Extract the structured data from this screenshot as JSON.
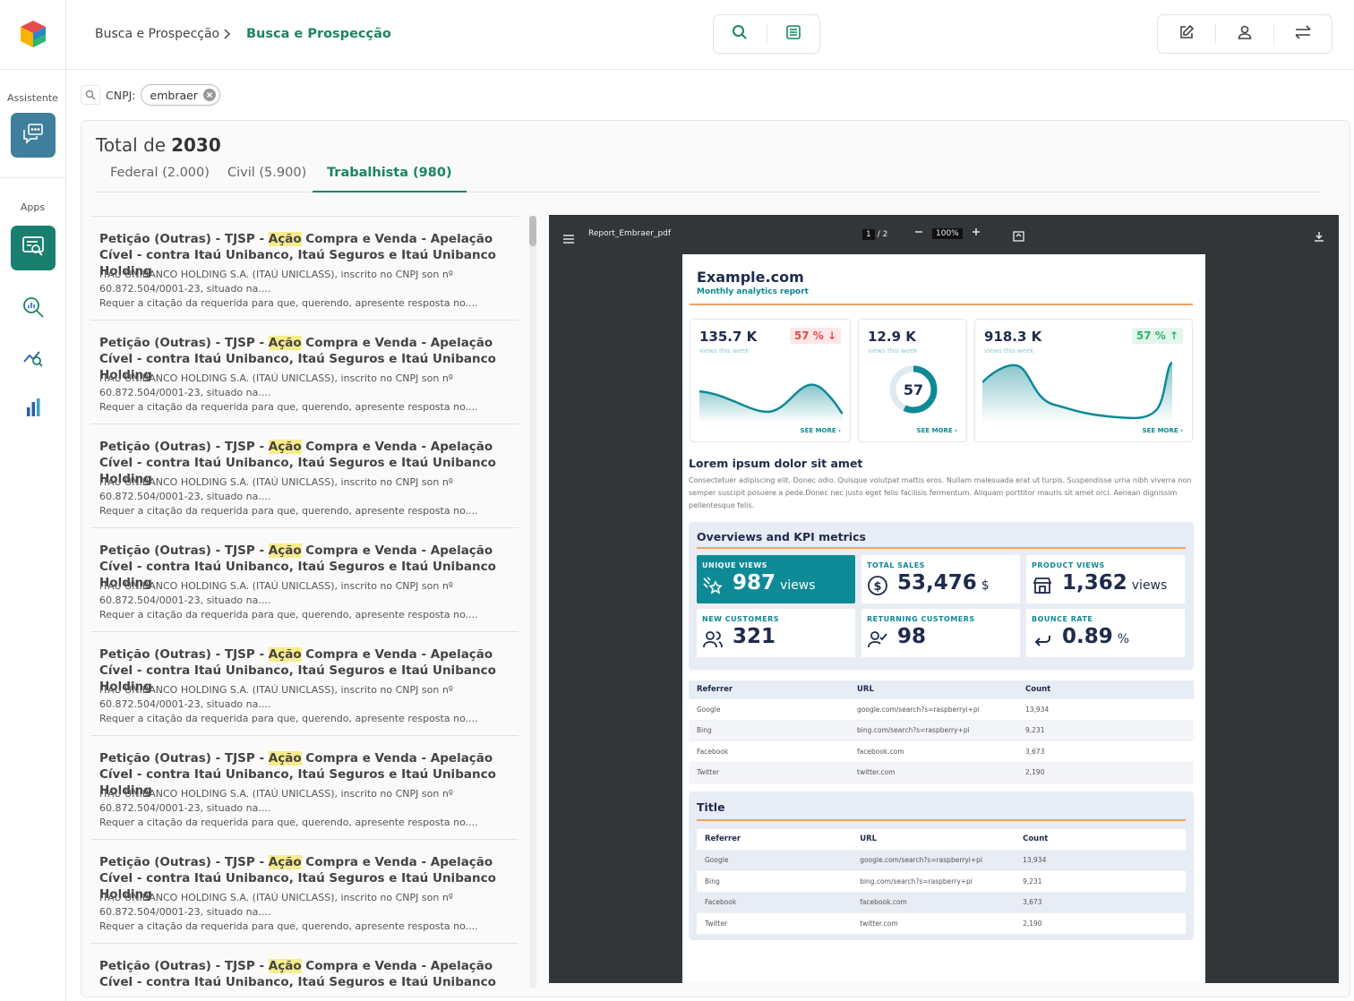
{
  "sidebar": {
    "assistant_label": "Assistente",
    "apps_label": "Apps",
    "items": [
      {
        "icon": "assistant-chat-icon"
      },
      {
        "icon": "document-search-icon"
      },
      {
        "icon": "chart-search-icon"
      },
      {
        "icon": "trend-search-icon"
      },
      {
        "icon": "bar-chart-icon"
      }
    ]
  },
  "header": {
    "breadcrumb_parent": "Busca e Prospecção",
    "breadcrumb_current": "Busca e Prospecção"
  },
  "filter": {
    "label": "CNPJ:",
    "chip": "embraer"
  },
  "summary": {
    "total_prefix": "Total de",
    "total_value": "2030"
  },
  "tabs": [
    {
      "label": "Federal (2.000)",
      "active": false
    },
    {
      "label": "Civil (5.900)",
      "active": false
    },
    {
      "label": "Trabalhista (980)",
      "active": true
    }
  ],
  "results": {
    "item": {
      "title_pre": "Petição (Outras) - TJSP - ",
      "title_highlight": "Ação",
      "title_post": " Compra e Venda - Apelação Cível - contra Itaú Unibanco, Itaú Seguros e Itaú Unibanco Holding",
      "line1": "ITAU UNIBANCO HOLDING S.A. (ITAÚ UNICLASS), inscrito no CNPJ son nº",
      "line2": "60.872.504/0001-23, situado na....",
      "line3": "Requer a citação da requerida para que, querendo, apresente resposta no...."
    },
    "count_visible": 8
  },
  "viewer": {
    "filename": "Report_Embraer_pdf",
    "page_current": "1",
    "page_total": "/ 2",
    "zoom": "100%"
  },
  "report": {
    "title": "Example.com",
    "subtitle": "Monthly analytics report",
    "stats": [
      {
        "value": "135.7 K",
        "sub": "views this week",
        "pct": "57 %",
        "trend": "down",
        "more": "SEE MORE ›"
      },
      {
        "value": "12.9 K",
        "sub": "views this week",
        "gauge": "57",
        "gauge_fraction": 0.57,
        "more": "SEE MORE ›"
      },
      {
        "value": "918.3 K",
        "sub": "views this week",
        "pct": "57 %",
        "trend": "up",
        "more": "SEE MORE ›"
      }
    ],
    "lorem_heading": "Lorem ipsum dolor sit amet",
    "lorem_text": "Consectetuer adipiscing elit. Donec odio. Quisque volutpat mattis eros. Nullam malesuada erat ut turpis. Suspendisse urna nibh viverra non semper suscipit posuere a pede.Donec nec justo eget felis facilisis fermentum. Aliquam porttitor mauris sit amet orci. Aenean dignissim pellentesque felis.",
    "kpi_heading": "Overviews and KPI metrics",
    "kpis": [
      {
        "label": "UNIQUE VIEWS",
        "value": "987",
        "unit": "views",
        "icon": "sparkle-star-icon"
      },
      {
        "label": "TOTAL SALES",
        "value": "53,476",
        "unit": "$",
        "icon": "dollar-coin-icon"
      },
      {
        "label": "PRODUCT VIEWS",
        "value": "1,362",
        "unit": "views",
        "icon": "storefront-icon"
      },
      {
        "label": "NEW CUSTOMERS",
        "value": "321",
        "unit": "",
        "icon": "users-icon"
      },
      {
        "label": "RETURNING CUSTOMERS",
        "value": "98",
        "unit": "",
        "icon": "user-check-icon"
      },
      {
        "label": "BOUNCE RATE",
        "value": "0.89",
        "unit": "%",
        "icon": "return-arrow-icon"
      }
    ],
    "table_headers": [
      "Referrer",
      "URL",
      "Count"
    ],
    "table_rows": [
      [
        "Google",
        "google.com/search?s=raspberryi+pi",
        "13,934"
      ],
      [
        "Bing",
        "bing.com/search?s=raspberry+pi",
        "9,231"
      ],
      [
        "Facebook",
        "facebook.com",
        "3,673"
      ],
      [
        "Twitter",
        "twitter.com",
        "2,190"
      ]
    ],
    "title_section": "Title",
    "table2_rows": [
      [
        "Google",
        "google.com/search?s=raspberryi+pi",
        "13,934"
      ],
      [
        "Bing",
        "bing.com/search?s=raspberry+pi",
        "9,231"
      ],
      [
        "Facebook",
        "facebook.com",
        "3,673"
      ],
      [
        "Twitter",
        "twitter.com",
        "2,190"
      ]
    ]
  },
  "colors": {
    "brand_green": "#1a8560",
    "teal": "#0d8a95",
    "accent_orange": "#f2a25b",
    "sidebar_active": "#1a7f6e",
    "assistant_blue": "#3f7f9b"
  }
}
